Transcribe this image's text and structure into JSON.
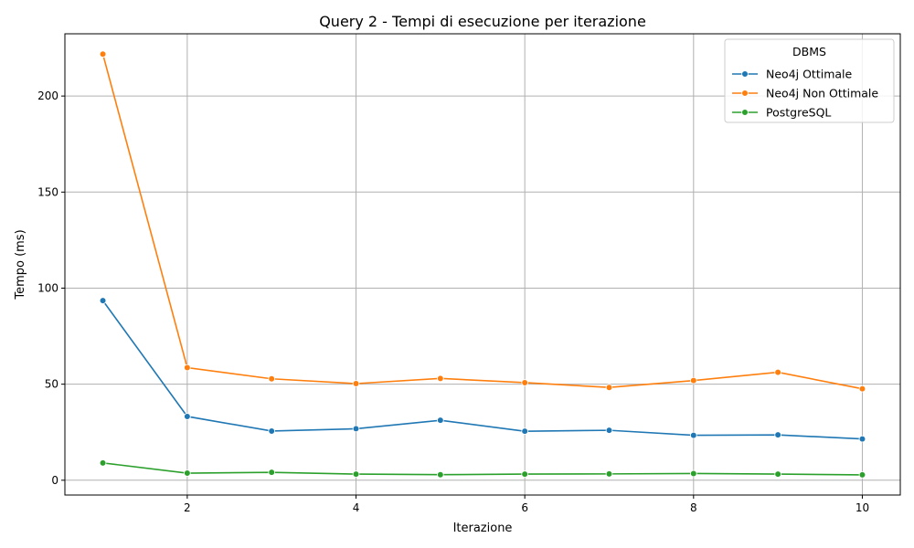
{
  "chart_data": {
    "type": "line",
    "title": "Query 2 - Tempi di esecuzione per iterazione",
    "xlabel": "Iterazione",
    "ylabel": "Tempo (ms)",
    "x": [
      1,
      2,
      3,
      4,
      5,
      6,
      7,
      8,
      9,
      10
    ],
    "xlim": [
      0.55,
      10.45
    ],
    "ylim": [
      -7.7,
      232.4
    ],
    "xticks": [
      2,
      4,
      6,
      8,
      10
    ],
    "yticks": [
      0,
      50,
      100,
      150,
      200
    ],
    "grid": true,
    "legend": {
      "title": "DBMS",
      "placement": "upper-right"
    },
    "series": [
      {
        "name": "Neo4j Ottimale",
        "color": "#1f77b4",
        "values": [
          93.5,
          33.2,
          25.6,
          26.8,
          31.2,
          25.5,
          26.0,
          23.4,
          23.6,
          21.5
        ]
      },
      {
        "name": "Neo4j Non Ottimale",
        "color": "#ff7f0e",
        "values": [
          221.8,
          58.6,
          52.8,
          50.3,
          53.0,
          50.8,
          48.3,
          51.9,
          56.2,
          47.6
        ]
      },
      {
        "name": "PostgreSQL",
        "color": "#2ca02c",
        "values": [
          9.0,
          3.7,
          4.1,
          3.2,
          2.9,
          3.2,
          3.3,
          3.5,
          3.2,
          2.8
        ]
      }
    ]
  }
}
